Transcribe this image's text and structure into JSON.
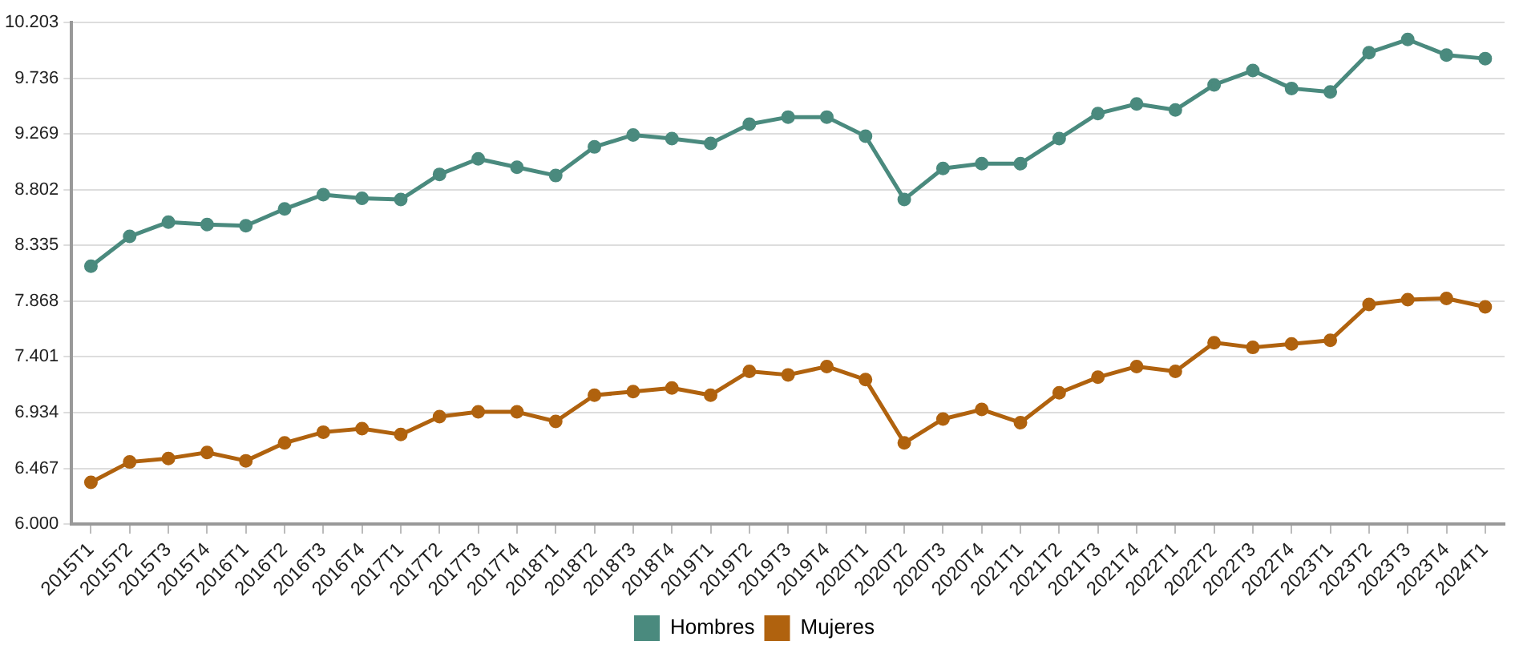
{
  "chart_data": {
    "type": "line",
    "categories": [
      "2015T1",
      "2015T2",
      "2015T3",
      "2015T4",
      "2016T1",
      "2016T2",
      "2016T3",
      "2016T4",
      "2017T1",
      "2017T2",
      "2017T3",
      "2017T4",
      "2018T1",
      "2018T2",
      "2018T3",
      "2018T4",
      "2019T1",
      "2019T2",
      "2019T3",
      "2019T4",
      "2020T1",
      "2020T2",
      "2020T3",
      "2020T4",
      "2021T1",
      "2021T2",
      "2021T3",
      "2021T4",
      "2022T1",
      "2022T2",
      "2022T3",
      "2022T4",
      "2023T1",
      "2023T2",
      "2023T3",
      "2023T4",
      "2024T1"
    ],
    "series": [
      {
        "name": "Hombres",
        "color": "#4a8a7e",
        "values": [
          8160,
          8410,
          8530,
          8510,
          8500,
          8640,
          8760,
          8730,
          8720,
          8930,
          9060,
          8990,
          8920,
          9160,
          9260,
          9230,
          9190,
          9350,
          9410,
          9410,
          9250,
          8720,
          8980,
          9020,
          9020,
          9230,
          9440,
          9520,
          9470,
          9680,
          9800,
          9650,
          9620,
          9950,
          10060,
          9930,
          9900
        ]
      },
      {
        "name": "Mujeres",
        "color": "#b0620e",
        "values": [
          6350,
          6520,
          6550,
          6600,
          6530,
          6680,
          6770,
          6800,
          6750,
          6900,
          6940,
          6940,
          6860,
          7080,
          7110,
          7140,
          7080,
          7280,
          7250,
          7320,
          7210,
          6680,
          6880,
          6960,
          6850,
          7100,
          7230,
          7320,
          7280,
          7520,
          7480,
          7510,
          7540,
          7840,
          7880,
          7890,
          7820
        ]
      }
    ],
    "ylim": [
      6000,
      10203
    ],
    "yticks": [
      {
        "value": 6000,
        "label": "6.000"
      },
      {
        "value": 6467,
        "label": "6.467"
      },
      {
        "value": 6934,
        "label": "6.934"
      },
      {
        "value": 7401,
        "label": "7.401"
      },
      {
        "value": 7868,
        "label": "7.868"
      },
      {
        "value": 8335,
        "label": "8.335"
      },
      {
        "value": 8802,
        "label": "8.802"
      },
      {
        "value": 9269,
        "label": "9.269"
      },
      {
        "value": 9736,
        "label": "9.736"
      },
      {
        "value": 10203,
        "label": "10.203"
      }
    ],
    "grid": "y",
    "legend": "bottom",
    "marker": "circle",
    "line_style": "solid"
  }
}
